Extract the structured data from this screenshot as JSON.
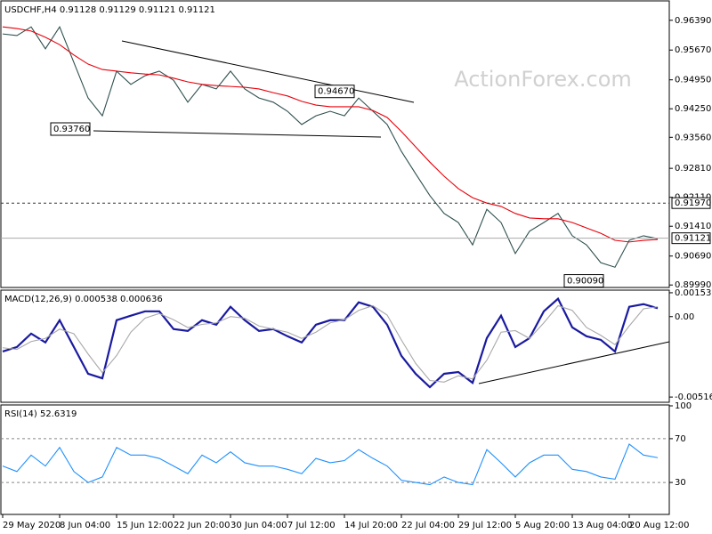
{
  "chart_data": [
    {
      "type": "line",
      "title": "USDCHF,H4 0.91128 0.91129 0.91121 0.91121",
      "watermark": "ActionForex.com",
      "categories": [
        "29 May 2020",
        null,
        null,
        null,
        "8 Jun 04:00",
        null,
        null,
        null,
        "15 Jun 12:00",
        null,
        null,
        null,
        "22 Jun 20:00",
        null,
        null,
        null,
        "30 Jun 04:00",
        null,
        null,
        null,
        "7 Jul 12:00",
        null,
        null,
        null,
        "14 Jul 20:00",
        null,
        null,
        null,
        "22 Jul 04:00",
        null,
        null,
        null,
        "29 Jul 12:00",
        null,
        null,
        null,
        "5 Aug 20:00",
        null,
        null,
        null,
        "13 Aug 04:00",
        null,
        null,
        null,
        "20 Aug 12:00",
        null,
        null
      ],
      "series": [
        {
          "color": "#2f4f4f",
          "values": [
            0.9606,
            0.9602,
            0.9623,
            0.957,
            0.9623,
            0.9537,
            0.9451,
            0.9408,
            0.9516,
            0.9484,
            0.9505,
            0.9516,
            0.9494,
            0.9441,
            0.9484,
            0.9473,
            0.9516,
            0.9473,
            0.9451,
            0.9441,
            0.9419,
            0.9387,
            0.9408,
            0.9419,
            0.9408,
            0.9451,
            0.9419,
            0.9387,
            0.9322,
            0.9268,
            0.9215,
            0.9172,
            0.915,
            0.9096,
            0.9182,
            0.915,
            0.9075,
            0.9129,
            0.915,
            0.9172,
            0.9118,
            0.9096,
            0.9053,
            0.9042,
            0.9107,
            0.9118,
            0.9111
          ]
        },
        {
          "color": "#e8000b",
          "values": [
            0.9623,
            0.9619,
            0.9613,
            0.9598,
            0.958,
            0.9555,
            0.9533,
            0.952,
            0.9516,
            0.9512,
            0.9509,
            0.9507,
            0.9499,
            0.949,
            0.9484,
            0.9481,
            0.9479,
            0.9477,
            0.9473,
            0.9464,
            0.9456,
            0.9443,
            0.9434,
            0.943,
            0.943,
            0.943,
            0.9421,
            0.9404,
            0.937,
            0.9333,
            0.9296,
            0.9262,
            0.9232,
            0.921,
            0.9197,
            0.9189,
            0.9172,
            0.9161,
            0.9159,
            0.9159,
            0.915,
            0.9137,
            0.9124,
            0.9107,
            0.9103,
            0.9107,
            0.9109
          ]
        }
      ],
      "ylim": [
        0.8993,
        0.9688
      ],
      "yticks": [
        {
          "value": 0.9639,
          "label": "0.96390"
        },
        {
          "value": 0.9567,
          "label": "0.95670"
        },
        {
          "value": 0.9495,
          "label": "0.94950"
        },
        {
          "value": 0.9425,
          "label": "0.94250"
        },
        {
          "value": 0.9356,
          "label": "0.93560"
        },
        {
          "value": 0.9281,
          "label": "0.92810"
        },
        {
          "value": 0.9211,
          "label": "0.92110"
        },
        {
          "value": 0.9141,
          "label": "0.91410"
        },
        {
          "value": 0.9069,
          "label": "0.90690"
        },
        {
          "value": 0.8999,
          "label": "0.89990"
        }
      ],
      "hlines": [
        {
          "value": 0.9197,
          "label": "0.91970",
          "style": "dashed"
        },
        {
          "value": 0.91121,
          "label": "0.91121",
          "style": "solid"
        }
      ],
      "annotations": [
        {
          "value": 0.9376,
          "label": "0.93760"
        },
        {
          "value": 0.9467,
          "label": "0.94670"
        },
        {
          "value": 0.9009,
          "label": "0.90090"
        }
      ]
    },
    {
      "type": "line",
      "title": "MACD(12,26,9) 0.000538 0.000636",
      "series": [
        {
          "color": "#1a1aa0",
          "values": [
            -0.00224,
            -0.00195,
            -0.00109,
            -0.00166,
            -0.00023,
            -0.00195,
            -0.00367,
            -0.00396,
            -0.00023,
            6e-05,
            0.00034,
            0.00034,
            -0.0008,
            -0.00092,
            -0.00023,
            -0.00052,
            0.00063,
            -0.00023,
            -0.00092,
            -0.0008,
            -0.00126,
            -0.00166,
            -0.00052,
            -0.00023,
            -0.00023,
            0.00092,
            0.00063,
            -0.00052,
            -0.00252,
            -0.00367,
            -0.00453,
            -0.00367,
            -0.00356,
            -0.00425,
            -0.00138,
            6e-05,
            -0.00195,
            -0.00138,
            0.00034,
            0.00115,
            -0.00069,
            -0.00126,
            -0.00149,
            -0.00224,
            0.00063,
            0.0008,
            0.000538
          ]
        },
        {
          "color": "#a9a9a9",
          "values": [
            -0.002,
            -0.0021,
            -0.0016,
            -0.0014,
            -0.0008,
            -0.0011,
            -0.0024,
            -0.0036,
            -0.0025,
            -0.001,
            -0.0001,
            0.0002,
            -0.0002,
            -0.0007,
            -0.0005,
            -0.0004,
            0.0,
            -0.0001,
            -0.0006,
            -0.0008,
            -0.001,
            -0.0014,
            -0.001,
            -0.0004,
            -0.0002,
            0.0004,
            0.0007,
            0.0001,
            -0.0015,
            -0.003,
            -0.0041,
            -0.0042,
            -0.0038,
            -0.004,
            -0.0028,
            -0.001,
            -0.0009,
            -0.0014,
            -0.0004,
            0.0007,
            0.0004,
            -0.0007,
            -0.0012,
            -0.0018,
            -0.0006,
            0.0005,
            0.000636
          ]
        }
      ],
      "ylim": [
        -0.0055,
        0.0017
      ],
      "yticks": [
        0.001532,
        {
          "value": 0,
          "label": "0.00"
        },
        -0.005164
      ]
    },
    {
      "type": "line",
      "title": "RSI(14) 52.6319",
      "series": [
        {
          "color": "#1e90ff",
          "values": [
            45,
            40,
            55,
            45,
            62,
            40,
            30,
            35,
            62,
            55,
            55,
            52,
            45,
            38,
            55,
            48,
            58,
            48,
            45,
            45,
            42,
            38,
            52,
            48,
            50,
            60,
            52,
            45,
            32,
            30,
            28,
            35,
            30,
            28,
            60,
            48,
            35,
            48,
            55,
            55,
            42,
            40,
            35,
            33,
            65,
            55,
            52.6319
          ]
        }
      ],
      "ylim": [
        0,
        100
      ],
      "yticks": [
        100,
        70,
        30
      ],
      "grid": true
    }
  ]
}
